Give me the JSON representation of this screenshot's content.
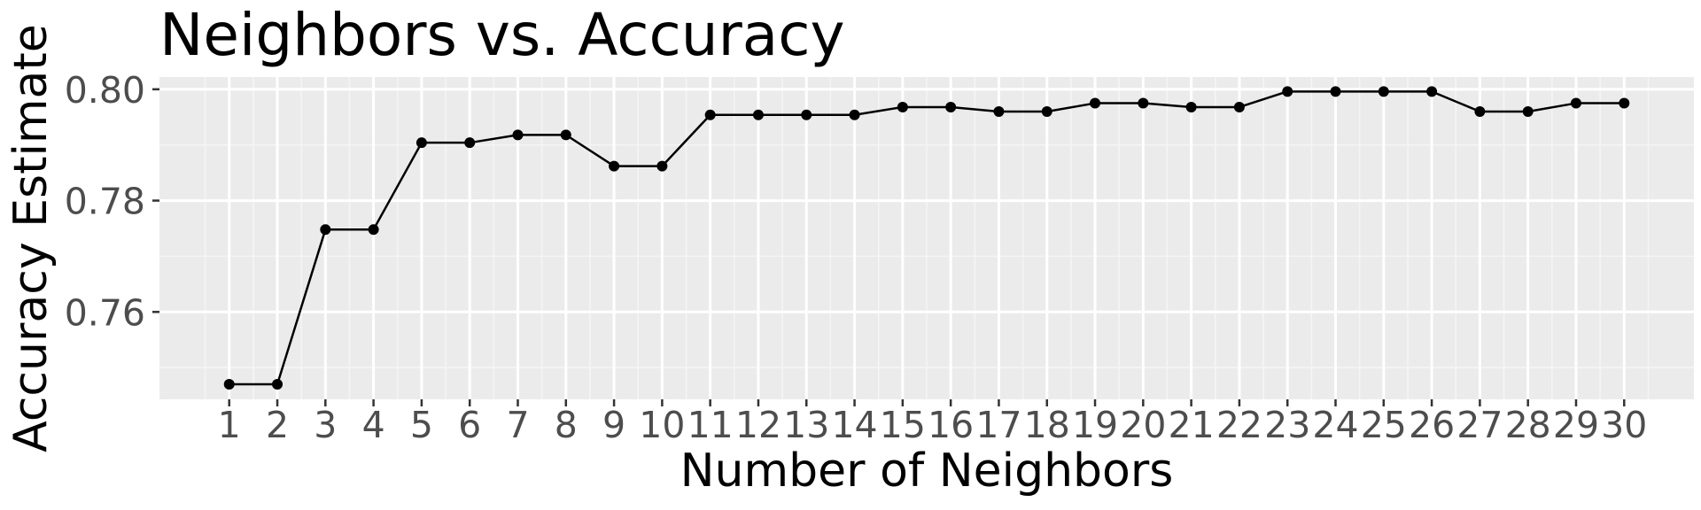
{
  "chart_data": {
    "type": "line",
    "title": "Neighbors vs. Accuracy",
    "xlabel": "Number of Neighbors",
    "ylabel": "Accuracy Estimate",
    "x": [
      1,
      2,
      3,
      4,
      5,
      6,
      7,
      8,
      9,
      10,
      11,
      12,
      13,
      14,
      15,
      16,
      17,
      18,
      19,
      20,
      21,
      22,
      23,
      24,
      25,
      26,
      27,
      28,
      29,
      30
    ],
    "x_tick_labels": [
      "1",
      "2",
      "3",
      "4",
      "5",
      "6",
      "7",
      "8",
      "9",
      "10",
      "11",
      "12",
      "13",
      "14",
      "15",
      "16",
      "17",
      "18",
      "19",
      "20",
      "21",
      "22",
      "23",
      "24",
      "25",
      "26",
      "27",
      "28",
      "29",
      "30"
    ],
    "series": [
      {
        "values": [
          0.747,
          0.747,
          0.7748,
          0.7748,
          0.7904,
          0.7904,
          0.7918,
          0.7918,
          0.7862,
          0.7862,
          0.7954,
          0.7954,
          0.7954,
          0.7954,
          0.7968,
          0.7968,
          0.796,
          0.796,
          0.7975,
          0.7975,
          0.7968,
          0.7968,
          0.7996,
          0.7996,
          0.7996,
          0.7996,
          0.796,
          0.796,
          0.7975,
          0.7975
        ]
      }
    ],
    "y_ticks": [
      0.76,
      0.78,
      0.8
    ],
    "y_tick_labels": [
      "0.76",
      "0.78",
      "0.80"
    ],
    "xlim": [
      -0.45,
      31.45
    ],
    "ylim": [
      0.7443,
      0.8022
    ],
    "grid": true,
    "legend": "none",
    "colors": {
      "panel_background": "#ebebeb",
      "grid_major": "#ffffff",
      "grid_minor": "#f5f5f5",
      "line": "#000000",
      "point": "#000000"
    }
  }
}
